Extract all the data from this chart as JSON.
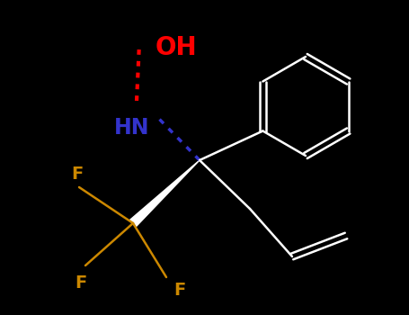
{
  "background_color": "#000000",
  "bond_color": "#ffffff",
  "bond_width": 1.8,
  "oh_color": "#ff0000",
  "hn_color": "#3333cc",
  "f_color": "#cc8800",
  "dark_bond_color": "#404040",
  "figsize": [
    4.55,
    3.5
  ],
  "dpi": 100,
  "oh_label": "OH",
  "hn_label": "HN",
  "f_label": "F",
  "oh_fontsize": 20,
  "hn_fontsize": 17,
  "f_fontsize": 14
}
